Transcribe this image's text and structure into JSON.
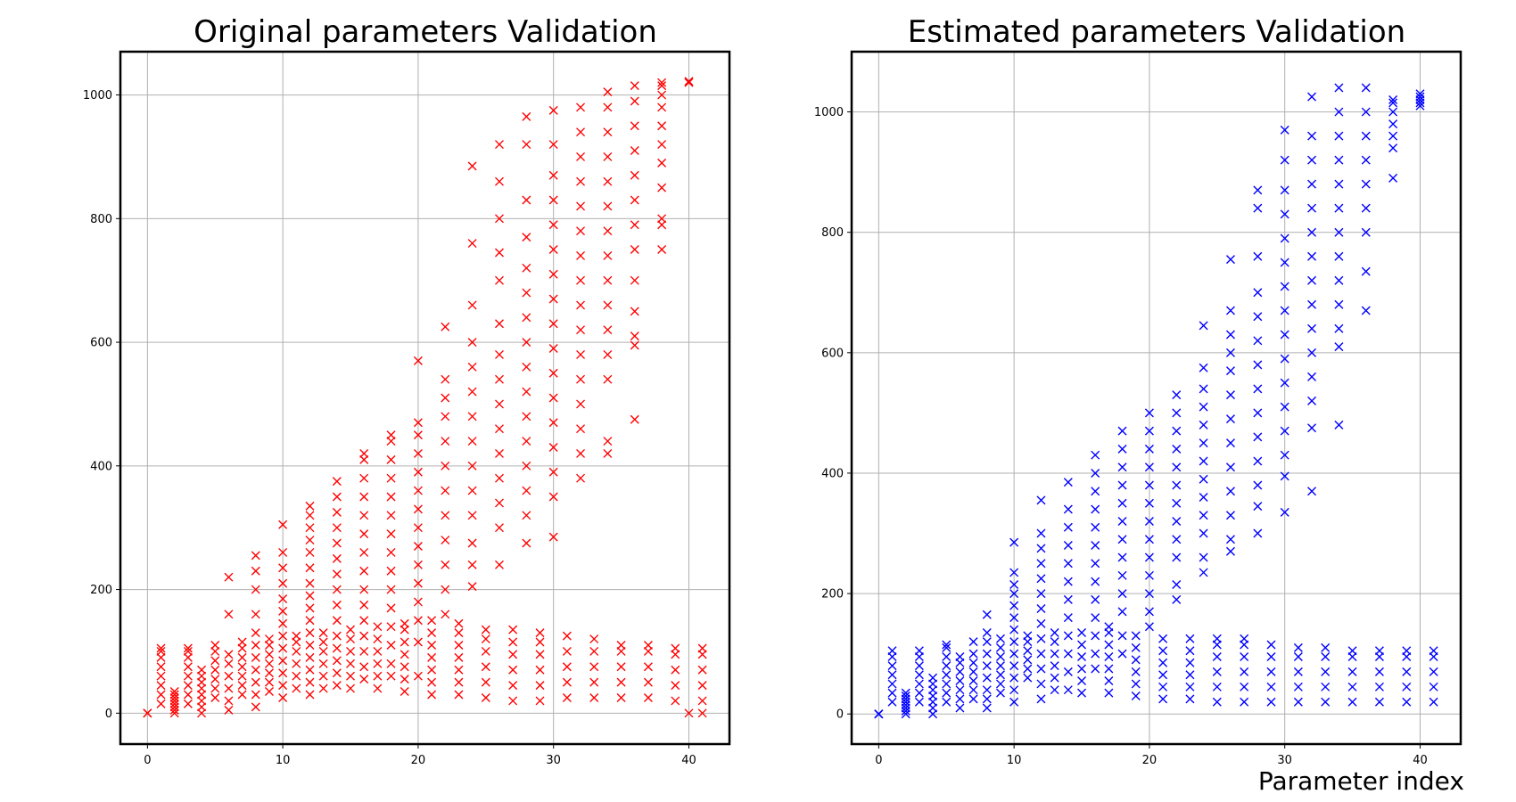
{
  "figure": {
    "xlabel": "Parameter index"
  },
  "chart_data": [
    {
      "type": "scatter",
      "title": "Original parameters Validation",
      "marker": "x",
      "color": "#ff0000",
      "grid": true,
      "xlim": [
        -2,
        43
      ],
      "ylim": [
        -50,
        1070
      ],
      "xticks": [
        "0",
        "10",
        "20",
        "30",
        "40"
      ],
      "yticks": [
        "0",
        "200",
        "400",
        "600",
        "800",
        "1000"
      ],
      "series": [
        {
          "x": 0,
          "points": [
            0,
            0,
            0
          ]
        },
        {
          "x": 1,
          "points": [
            15,
            30,
            45,
            60,
            75,
            90,
            100,
            105
          ]
        },
        {
          "x": 2,
          "points": [
            0,
            5,
            10,
            15,
            20,
            25,
            30,
            35
          ]
        },
        {
          "x": 3,
          "points": [
            15,
            30,
            45,
            60,
            75,
            90,
            100,
            105
          ]
        },
        {
          "x": 4,
          "points": [
            0,
            10,
            20,
            30,
            40,
            50,
            60,
            70
          ]
        },
        {
          "x": 5,
          "points": [
            25,
            40,
            55,
            70,
            85,
            100,
            110
          ]
        },
        {
          "x": 6,
          "points": [
            5,
            20,
            40,
            60,
            80,
            95,
            160,
            220
          ]
        },
        {
          "x": 7,
          "points": [
            30,
            45,
            60,
            75,
            90,
            105,
            115
          ]
        },
        {
          "x": 8,
          "points": [
            10,
            30,
            50,
            70,
            90,
            110,
            130,
            160,
            200,
            230,
            255
          ]
        },
        {
          "x": 9,
          "points": [
            35,
            50,
            65,
            80,
            95,
            110,
            120
          ]
        },
        {
          "x": 10,
          "points": [
            25,
            45,
            65,
            85,
            105,
            125,
            145,
            165,
            185,
            210,
            235,
            260,
            305
          ]
        },
        {
          "x": 11,
          "points": [
            40,
            60,
            80,
            100,
            115,
            125
          ]
        },
        {
          "x": 12,
          "points": [
            30,
            50,
            70,
            90,
            110,
            130,
            150,
            170,
            190,
            210,
            235,
            260,
            280,
            300,
            320,
            335
          ]
        },
        {
          "x": 13,
          "points": [
            40,
            60,
            80,
            100,
            115,
            130
          ]
        },
        {
          "x": 14,
          "points": [
            45,
            65,
            85,
            105,
            125,
            150,
            175,
            200,
            225,
            250,
            275,
            300,
            325,
            350,
            375
          ]
        },
        {
          "x": 15,
          "points": [
            40,
            60,
            80,
            100,
            120,
            135
          ]
        },
        {
          "x": 16,
          "points": [
            55,
            75,
            100,
            125,
            150,
            175,
            200,
            230,
            260,
            290,
            320,
            350,
            380,
            410,
            420
          ]
        },
        {
          "x": 17,
          "points": [
            40,
            60,
            80,
            100,
            120,
            140
          ]
        },
        {
          "x": 18,
          "points": [
            60,
            80,
            110,
            140,
            170,
            200,
            230,
            260,
            290,
            320,
            350,
            380,
            410,
            440,
            450
          ]
        },
        {
          "x": 19,
          "points": [
            35,
            55,
            75,
            95,
            115,
            135,
            145
          ]
        },
        {
          "x": 20,
          "points": [
            60,
            115,
            150,
            180,
            210,
            240,
            270,
            300,
            330,
            360,
            390,
            420,
            450,
            470,
            570
          ]
        },
        {
          "x": 21,
          "points": [
            30,
            50,
            70,
            90,
            110,
            130,
            150
          ]
        },
        {
          "x": 22,
          "points": [
            160,
            200,
            240,
            280,
            320,
            360,
            400,
            440,
            480,
            510,
            540,
            625
          ]
        },
        {
          "x": 23,
          "points": [
            30,
            50,
            70,
            90,
            110,
            130,
            145
          ]
        },
        {
          "x": 24,
          "points": [
            205,
            240,
            275,
            320,
            360,
            400,
            440,
            480,
            520,
            560,
            600,
            660,
            760,
            885
          ]
        },
        {
          "x": 25,
          "points": [
            25,
            50,
            75,
            100,
            120,
            135
          ]
        },
        {
          "x": 26,
          "points": [
            240,
            300,
            340,
            380,
            420,
            460,
            500,
            540,
            580,
            630,
            700,
            745,
            800,
            860,
            920
          ]
        },
        {
          "x": 27,
          "points": [
            20,
            45,
            70,
            95,
            115,
            135
          ]
        },
        {
          "x": 28,
          "points": [
            275,
            320,
            360,
            400,
            440,
            480,
            520,
            560,
            600,
            640,
            680,
            720,
            770,
            830,
            920,
            965
          ]
        },
        {
          "x": 29,
          "points": [
            20,
            45,
            70,
            95,
            115,
            130
          ]
        },
        {
          "x": 30,
          "points": [
            285,
            350,
            390,
            430,
            470,
            510,
            550,
            590,
            630,
            670,
            710,
            750,
            790,
            830,
            870,
            920,
            975
          ]
        },
        {
          "x": 31,
          "points": [
            25,
            50,
            75,
            100,
            125
          ]
        },
        {
          "x": 32,
          "points": [
            380,
            420,
            460,
            500,
            540,
            580,
            620,
            660,
            700,
            740,
            780,
            820,
            860,
            900,
            940,
            980
          ]
        },
        {
          "x": 33,
          "points": [
            25,
            50,
            75,
            100,
            120
          ]
        },
        {
          "x": 34,
          "points": [
            420,
            440,
            540,
            580,
            620,
            660,
            700,
            740,
            780,
            820,
            860,
            900,
            940,
            980,
            1005
          ]
        },
        {
          "x": 35,
          "points": [
            25,
            50,
            75,
            100,
            110
          ]
        },
        {
          "x": 36,
          "points": [
            475,
            595,
            610,
            650,
            700,
            750,
            790,
            830,
            870,
            910,
            950,
            990,
            1015
          ]
        },
        {
          "x": 37,
          "points": [
            25,
            50,
            75,
            100,
            110
          ]
        },
        {
          "x": 38,
          "points": [
            750,
            790,
            800,
            850,
            890,
            920,
            950,
            980,
            1000,
            1015,
            1020
          ]
        },
        {
          "x": 39,
          "points": [
            20,
            45,
            70,
            95,
            105
          ]
        },
        {
          "x": 40,
          "points": [
            0,
            1020,
            1022
          ]
        },
        {
          "x": 41,
          "points": [
            0,
            20,
            45,
            70,
            95,
            105
          ]
        }
      ]
    },
    {
      "type": "scatter",
      "title": "Estimated parameters Validation",
      "marker": "x",
      "color": "#0000ff",
      "grid": true,
      "xlim": [
        -2,
        43
      ],
      "ylim": [
        -50,
        1100
      ],
      "xticks": [
        "0",
        "10",
        "20",
        "30",
        "40"
      ],
      "yticks": [
        "0",
        "200",
        "400",
        "600",
        "800",
        "1000"
      ],
      "series": [
        {
          "x": 0,
          "points": [
            0,
            0,
            0
          ]
        },
        {
          "x": 1,
          "points": [
            20,
            35,
            50,
            65,
            80,
            95,
            105
          ]
        },
        {
          "x": 2,
          "points": [
            0,
            5,
            10,
            15,
            20,
            25,
            30,
            35
          ]
        },
        {
          "x": 3,
          "points": [
            20,
            35,
            50,
            65,
            80,
            95,
            105
          ]
        },
        {
          "x": 4,
          "points": [
            0,
            10,
            20,
            30,
            40,
            50,
            60
          ]
        },
        {
          "x": 5,
          "points": [
            20,
            35,
            50,
            65,
            80,
            95,
            110,
            115
          ]
        },
        {
          "x": 6,
          "points": [
            10,
            25,
            40,
            55,
            70,
            85,
            95
          ]
        },
        {
          "x": 7,
          "points": [
            25,
            40,
            55,
            70,
            85,
            100,
            120
          ]
        },
        {
          "x": 8,
          "points": [
            10,
            25,
            40,
            60,
            80,
            100,
            120,
            135,
            165
          ]
        },
        {
          "x": 9,
          "points": [
            35,
            50,
            65,
            80,
            95,
            110,
            125
          ]
        },
        {
          "x": 10,
          "points": [
            20,
            40,
            60,
            80,
            100,
            120,
            140,
            160,
            180,
            200,
            215,
            235,
            285
          ]
        },
        {
          "x": 11,
          "points": [
            60,
            75,
            90,
            105,
            120,
            130
          ]
        },
        {
          "x": 12,
          "points": [
            25,
            50,
            75,
            100,
            125,
            150,
            175,
            200,
            225,
            250,
            275,
            300,
            355
          ]
        },
        {
          "x": 13,
          "points": [
            40,
            60,
            80,
            100,
            120,
            135
          ]
        },
        {
          "x": 14,
          "points": [
            40,
            70,
            100,
            130,
            160,
            190,
            220,
            250,
            280,
            310,
            340,
            385
          ]
        },
        {
          "x": 15,
          "points": [
            35,
            55,
            75,
            95,
            115,
            135
          ]
        },
        {
          "x": 16,
          "points": [
            75,
            100,
            130,
            160,
            190,
            220,
            250,
            280,
            310,
            340,
            370,
            400,
            430
          ]
        },
        {
          "x": 17,
          "points": [
            35,
            55,
            75,
            95,
            115,
            135,
            145
          ]
        },
        {
          "x": 18,
          "points": [
            100,
            130,
            170,
            200,
            230,
            260,
            290,
            320,
            350,
            380,
            410,
            440,
            470
          ]
        },
        {
          "x": 19,
          "points": [
            30,
            50,
            70,
            90,
            110,
            130
          ]
        },
        {
          "x": 20,
          "points": [
            145,
            170,
            200,
            230,
            260,
            290,
            320,
            350,
            380,
            410,
            440,
            470,
            500
          ]
        },
        {
          "x": 21,
          "points": [
            25,
            45,
            65,
            85,
            105,
            125
          ]
        },
        {
          "x": 22,
          "points": [
            190,
            215,
            260,
            290,
            320,
            350,
            380,
            410,
            440,
            470,
            500,
            530
          ]
        },
        {
          "x": 23,
          "points": [
            25,
            45,
            65,
            85,
            105,
            125
          ]
        },
        {
          "x": 24,
          "points": [
            235,
            260,
            300,
            330,
            360,
            390,
            420,
            450,
            480,
            510,
            540,
            575,
            645
          ]
        },
        {
          "x": 25,
          "points": [
            20,
            45,
            70,
            95,
            115,
            125
          ]
        },
        {
          "x": 26,
          "points": [
            270,
            290,
            330,
            370,
            410,
            450,
            490,
            530,
            570,
            600,
            630,
            670,
            755
          ]
        },
        {
          "x": 27,
          "points": [
            20,
            45,
            70,
            95,
            115,
            125
          ]
        },
        {
          "x": 28,
          "points": [
            300,
            345,
            380,
            420,
            460,
            500,
            540,
            580,
            620,
            660,
            700,
            760,
            840,
            870
          ]
        },
        {
          "x": 29,
          "points": [
            20,
            45,
            70,
            95,
            115
          ]
        },
        {
          "x": 30,
          "points": [
            335,
            395,
            430,
            470,
            510,
            550,
            590,
            630,
            670,
            710,
            750,
            790,
            830,
            870,
            920,
            970
          ]
        },
        {
          "x": 31,
          "points": [
            20,
            45,
            70,
            95,
            110
          ]
        },
        {
          "x": 32,
          "points": [
            370,
            475,
            520,
            560,
            600,
            640,
            680,
            720,
            760,
            800,
            840,
            880,
            920,
            960,
            1025
          ]
        },
        {
          "x": 33,
          "points": [
            20,
            45,
            70,
            95,
            110
          ]
        },
        {
          "x": 34,
          "points": [
            480,
            610,
            640,
            680,
            720,
            760,
            800,
            840,
            880,
            920,
            960,
            1000,
            1040
          ]
        },
        {
          "x": 35,
          "points": [
            20,
            45,
            70,
            95,
            105
          ]
        },
        {
          "x": 36,
          "points": [
            670,
            735,
            800,
            840,
            880,
            920,
            960,
            1000,
            1040
          ]
        },
        {
          "x": 37,
          "points": [
            20,
            45,
            70,
            95,
            105
          ]
        },
        {
          "x": 38,
          "points": [
            890,
            940,
            960,
            980,
            1000,
            1015,
            1020
          ]
        },
        {
          "x": 39,
          "points": [
            20,
            45,
            70,
            95,
            105
          ]
        },
        {
          "x": 40,
          "points": [
            1010,
            1015,
            1020,
            1025,
            1030
          ]
        },
        {
          "x": 41,
          "points": [
            20,
            45,
            70,
            95,
            105
          ]
        }
      ]
    }
  ]
}
